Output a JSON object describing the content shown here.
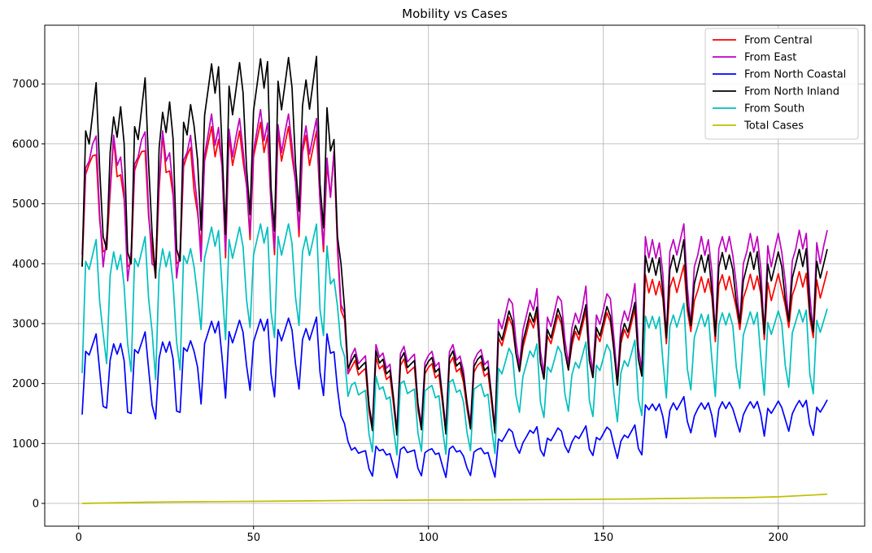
{
  "chart_data": {
    "type": "line",
    "title": "Mobility vs Cases",
    "xlabel": "",
    "ylabel": "",
    "xlim": [
      -9.7,
      224.7
    ],
    "ylim": [
      -380,
      7980
    ],
    "x_ticks": [
      0,
      50,
      100,
      150,
      200
    ],
    "y_ticks": [
      0,
      1000,
      2000,
      3000,
      4000,
      5000,
      6000,
      7000
    ],
    "grid": true,
    "legend_position": "top-right",
    "x": {
      "start": 1,
      "end": 214,
      "step": 1
    },
    "series": [
      {
        "name": "From Central",
        "color": "#ff0000",
        "segments": [
          {
            "weekdays": [
              4000,
              5300,
              5950,
              5800,
              5550
            ],
            "weekend": [
              4900,
              4150
            ],
            "weeks": 5,
            "start_x": 1,
            "end_x": 35
          },
          {
            "weekdays": [
              6000,
              6000,
              6000,
              6000,
              6000
            ],
            "weekend": [
              5300,
              4200
            ],
            "weeks": 5,
            "start_x": 36,
            "end_x": 70
          },
          {
            "weekdays": [
              5400,
              5300,
              5800,
              4000,
              3300
            ],
            "weekend": [
              3000,
              2300
            ],
            "weeks": 1,
            "start_x": 71,
            "end_x": 77
          },
          {
            "weekdays": [
              2300,
              2300,
              2250,
              2200,
              2150
            ],
            "weekend": [
              1600,
              1200
            ],
            "weeks": 6,
            "start_x": 78,
            "end_x": 119
          },
          {
            "weekdays": [
              2700,
              2800,
              2900,
              3000,
              3100
            ],
            "weekend": [
              2500,
              2100
            ],
            "weeks": 6,
            "start_x": 120,
            "end_x": 161
          },
          {
            "weekdays": [
              3600,
              3600,
              3650,
              3700,
              3750
            ],
            "weekend": [
              3300,
              2800
            ],
            "weeks": 8,
            "start_x": 162,
            "end_x": 214
          }
        ]
      },
      {
        "name": "From East",
        "color": "#bf00bf",
        "segments": [
          {
            "weekdays": [
              4200,
              5400,
              6000,
              6000,
              5850
            ],
            "weekend": [
              5000,
              3900
            ],
            "weeks": 5,
            "start_x": 1,
            "end_x": 35
          },
          {
            "weekdays": [
              6100,
              6150,
              6200,
              6200,
              6200
            ],
            "weekend": [
              5300,
              4300
            ],
            "weeks": 5,
            "start_x": 36,
            "end_x": 70
          },
          {
            "weekdays": [
              5500,
              5300,
              5800,
              4100,
              3400
            ],
            "weekend": [
              3100,
              2300
            ],
            "weeks": 1,
            "start_x": 71,
            "end_x": 77
          },
          {
            "weekdays": [
              2500,
              2500,
              2450,
              2400,
              2350
            ],
            "weekend": [
              1700,
              1300
            ],
            "weeks": 6,
            "start_x": 78,
            "end_x": 119
          },
          {
            "weekdays": [
              3000,
              3100,
              3200,
              3300,
              3500
            ],
            "weekend": [
              2700,
              2200
            ],
            "weeks": 6,
            "start_x": 120,
            "end_x": 161
          },
          {
            "weekdays": [
              4200,
              4200,
              4300,
              4350,
              4400
            ],
            "weekend": [
              3700,
              2900
            ],
            "weeks": 8,
            "start_x": 162,
            "end_x": 214
          }
        ]
      },
      {
        "name": "From North Coastal",
        "color": "#0000ff",
        "segments": [
          {
            "weekdays": [
              1500,
              2450,
              2600,
              2650,
              2700
            ],
            "weekend": [
              2300,
              1600
            ],
            "weeks": 5,
            "start_x": 1,
            "end_x": 35
          },
          {
            "weekdays": [
              2800,
              2850,
              2900,
              2950,
              3000
            ],
            "weekend": [
              2300,
              1800
            ],
            "weeks": 5,
            "start_x": 36,
            "end_x": 70
          },
          {
            "weekdays": [
              2700,
              2600,
              2500,
              1800,
              1500
            ],
            "weekend": [
              1300,
              1100
            ],
            "weeks": 1,
            "start_x": 71,
            "end_x": 77
          },
          {
            "weekdays": [
              900,
              900,
              880,
              860,
              840
            ],
            "weekend": [
              600,
              450
            ],
            "weeks": 6,
            "start_x": 78,
            "end_x": 119
          },
          {
            "weekdays": [
              1050,
              1100,
              1150,
              1200,
              1250
            ],
            "weekend": [
              950,
              800
            ],
            "weeks": 6,
            "start_x": 120,
            "end_x": 161
          },
          {
            "weekdays": [
              1550,
              1600,
              1620,
              1650,
              1680
            ],
            "weekend": [
              1400,
              1150
            ],
            "weeks": 8,
            "start_x": 162,
            "end_x": 214
          }
        ]
      },
      {
        "name": "From North Inland",
        "color": "#000000",
        "segments": [
          {
            "weekdays": [
              4000,
              6000,
              6300,
              6500,
              6700
            ],
            "weekend": [
              5800,
              4400
            ],
            "weeks": 5,
            "start_x": 1,
            "end_x": 35
          },
          {
            "weekdays": [
              6800,
              6900,
              7000,
              7100,
              7200
            ],
            "weekend": [
              5600,
              4600
            ],
            "weeks": 5,
            "start_x": 36,
            "end_x": 70
          },
          {
            "weekdays": [
              6300,
              6100,
              6000,
              4200,
              4100
            ],
            "weekend": [
              3200,
              2400
            ],
            "weeks": 1,
            "start_x": 71,
            "end_x": 77
          },
          {
            "weekdays": [
              2400,
              2400,
              2350,
              2300,
              2250
            ],
            "weekend": [
              1700,
              1200
            ],
            "weeks": 6,
            "start_x": 78,
            "end_x": 119
          },
          {
            "weekdays": [
              2800,
              2900,
              3000,
              3100,
              3200
            ],
            "weekend": [
              2500,
              2100
            ],
            "weeks": 6,
            "start_x": 120,
            "end_x": 161
          },
          {
            "weekdays": [
              3900,
              3950,
              4000,
              4050,
              4150
            ],
            "weekend": [
              3400,
              2900
            ],
            "weeks": 8,
            "start_x": 162,
            "end_x": 214
          }
        ]
      },
      {
        "name": "From South",
        "color": "#00bfbf",
        "segments": [
          {
            "weekdays": [
              2200,
              3900,
              4100,
              4150,
              4200
            ],
            "weekend": [
              3500,
              2800
            ],
            "weeks": 5,
            "start_x": 1,
            "end_x": 35
          },
          {
            "weekdays": [
              4300,
              4350,
              4400,
              4450,
              4500
            ],
            "weekend": [
              3400,
              2800
            ],
            "weeks": 5,
            "start_x": 36,
            "end_x": 70
          },
          {
            "weekdays": [
              4100,
              3800,
              3700,
              3100,
              2700
            ],
            "weekend": [
              2400,
              1900
            ],
            "weeks": 1,
            "start_x": 71,
            "end_x": 77
          },
          {
            "weekdays": [
              2000,
              1950,
              1900,
              1850,
              1800
            ],
            "weekend": [
              1200,
              850
            ],
            "weeks": 6,
            "start_x": 78,
            "end_x": 119
          },
          {
            "weekdays": [
              2200,
              2300,
              2400,
              2500,
              2600
            ],
            "weekend": [
              1800,
              1450
            ],
            "weeks": 6,
            "start_x": 120,
            "end_x": 161
          },
          {
            "weekdays": [
              2950,
              3000,
              3050,
              3100,
              3150
            ],
            "weekend": [
              2300,
              1850
            ],
            "weeks": 8,
            "start_x": 162,
            "end_x": 214
          }
        ]
      },
      {
        "name": "Total Cases",
        "color": "#bfbf00",
        "points": [
          [
            1,
            0
          ],
          [
            20,
            20
          ],
          [
            40,
            30
          ],
          [
            60,
            40
          ],
          [
            80,
            50
          ],
          [
            100,
            55
          ],
          [
            120,
            60
          ],
          [
            140,
            65
          ],
          [
            160,
            75
          ],
          [
            180,
            90
          ],
          [
            190,
            95
          ],
          [
            200,
            110
          ],
          [
            210,
            140
          ],
          [
            214,
            155
          ]
        ]
      }
    ]
  }
}
